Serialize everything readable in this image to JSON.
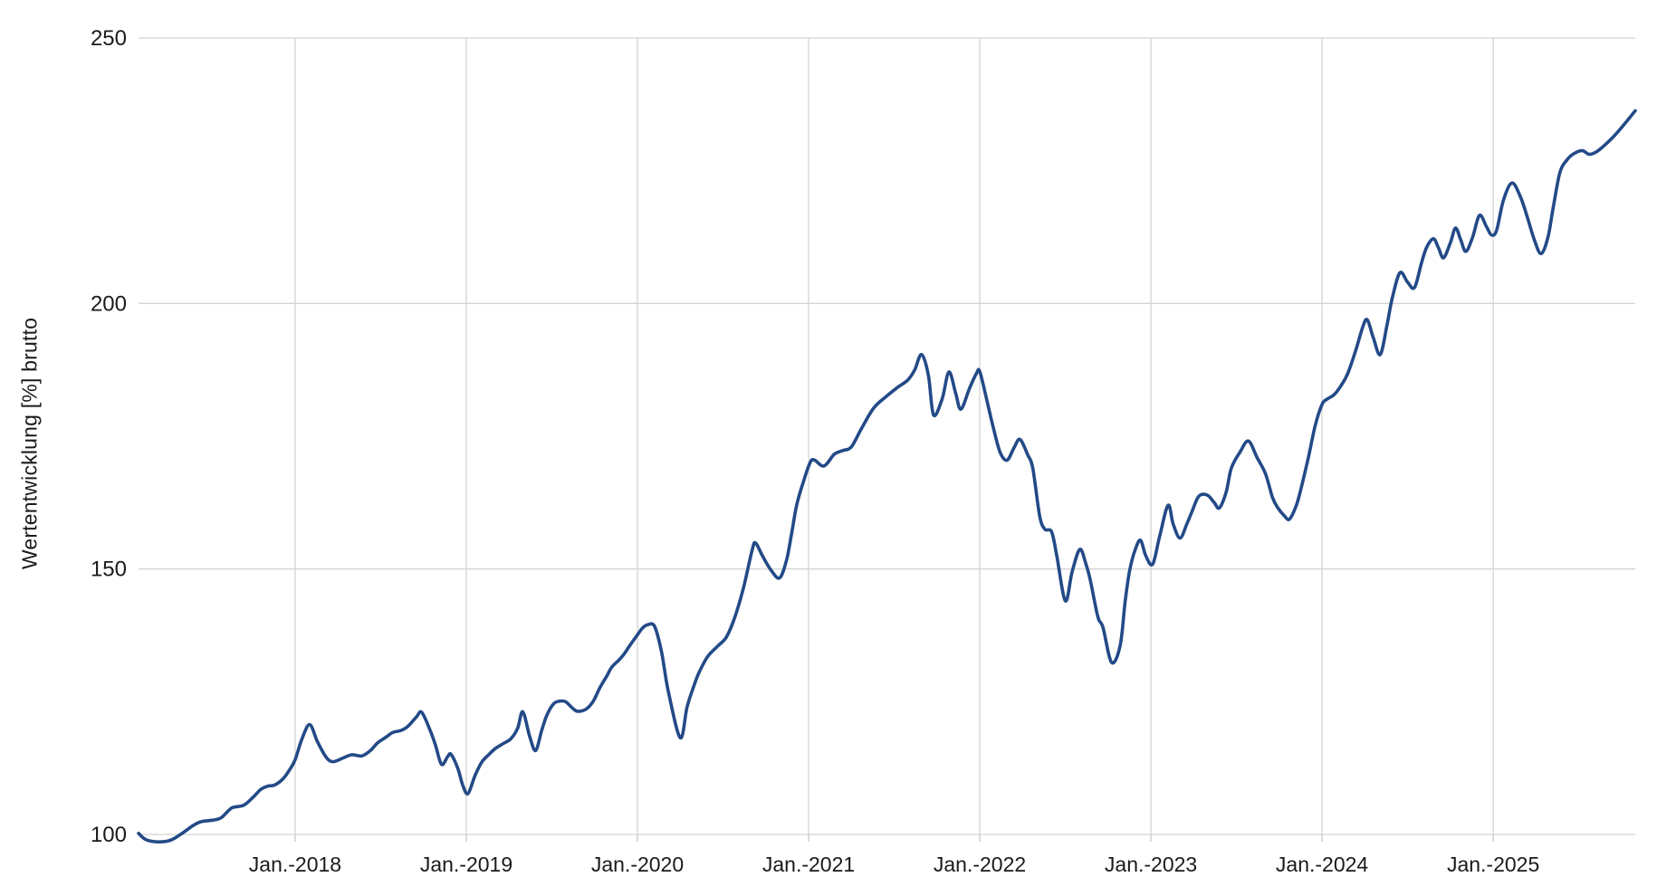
{
  "page": {
    "background": "#ffffff"
  },
  "chart_data": {
    "type": "line",
    "title": "",
    "xlabel": "",
    "ylabel": "Wertentwicklung [%] brutto",
    "legend_position": "none",
    "grid": true,
    "line_color": "#234a87",
    "grid_color": "#d4d4d4",
    "tick_color": "#c8c8c8",
    "text_color": "#1a1a1a",
    "ylim": [
      100,
      250
    ],
    "y_ticks": [
      100,
      150,
      200,
      250
    ],
    "x_ticks": [
      {
        "year": 2018,
        "label": "Jan.-2018"
      },
      {
        "year": 2019,
        "label": "Jan.-2019"
      },
      {
        "year": 2020,
        "label": "Jan.-2020"
      },
      {
        "year": 2021,
        "label": "Jan.-2021"
      },
      {
        "year": 2022,
        "label": "Jan.-2022"
      },
      {
        "year": 2023,
        "label": "Jan.-2023"
      },
      {
        "year": 2024,
        "label": "Jan.-2024"
      },
      {
        "year": 2025,
        "label": "Jan.-2025"
      }
    ],
    "x_range_decimal_years": [
      2017.085,
      2025.83
    ],
    "series": [
      {
        "name": "Wertentwicklung [%] brutto",
        "points": [
          [
            2017.085,
            100.2
          ],
          [
            2017.13,
            99.0
          ],
          [
            2017.2,
            98.6
          ],
          [
            2017.27,
            98.9
          ],
          [
            2017.33,
            100.0
          ],
          [
            2017.4,
            101.6
          ],
          [
            2017.45,
            102.4
          ],
          [
            2017.52,
            102.7
          ],
          [
            2017.57,
            103.2
          ],
          [
            2017.63,
            105.0
          ],
          [
            2017.7,
            105.5
          ],
          [
            2017.76,
            107.2
          ],
          [
            2017.8,
            108.5
          ],
          [
            2017.84,
            109.1
          ],
          [
            2017.88,
            109.3
          ],
          [
            2017.93,
            110.5
          ],
          [
            2017.97,
            112.3
          ],
          [
            2018.0,
            114.1
          ],
          [
            2018.04,
            118.0
          ],
          [
            2018.085,
            120.7
          ],
          [
            2018.13,
            117.5
          ],
          [
            2018.18,
            114.6
          ],
          [
            2018.22,
            113.7
          ],
          [
            2018.28,
            114.4
          ],
          [
            2018.33,
            115.0
          ],
          [
            2018.39,
            114.8
          ],
          [
            2018.44,
            115.8
          ],
          [
            2018.48,
            117.2
          ],
          [
            2018.53,
            118.3
          ],
          [
            2018.57,
            119.2
          ],
          [
            2018.62,
            119.6
          ],
          [
            2018.66,
            120.4
          ],
          [
            2018.71,
            122.2
          ],
          [
            2018.74,
            123.0
          ],
          [
            2018.79,
            119.5
          ],
          [
            2018.82,
            116.8
          ],
          [
            2018.855,
            113.2
          ],
          [
            2018.89,
            114.6
          ],
          [
            2018.91,
            115.1
          ],
          [
            2018.95,
            112.5
          ],
          [
            2018.98,
            109.2
          ],
          [
            2019.01,
            107.7
          ],
          [
            2019.05,
            111.0
          ],
          [
            2019.09,
            113.6
          ],
          [
            2019.13,
            115.0
          ],
          [
            2019.17,
            116.2
          ],
          [
            2019.22,
            117.2
          ],
          [
            2019.26,
            118.0
          ],
          [
            2019.3,
            120.0
          ],
          [
            2019.33,
            123.1
          ],
          [
            2019.37,
            118.5
          ],
          [
            2019.405,
            115.8
          ],
          [
            2019.44,
            119.5
          ],
          [
            2019.47,
            122.4
          ],
          [
            2019.51,
            124.6
          ],
          [
            2019.545,
            125.1
          ],
          [
            2019.58,
            125.0
          ],
          [
            2019.62,
            123.8
          ],
          [
            2019.65,
            123.2
          ],
          [
            2019.7,
            123.6
          ],
          [
            2019.74,
            125.0
          ],
          [
            2019.78,
            127.6
          ],
          [
            2019.82,
            129.8
          ],
          [
            2019.85,
            131.5
          ],
          [
            2019.89,
            132.8
          ],
          [
            2019.92,
            133.9
          ],
          [
            2019.96,
            135.8
          ],
          [
            2020.0,
            137.6
          ],
          [
            2020.03,
            138.9
          ],
          [
            2020.06,
            139.5
          ],
          [
            2020.1,
            139.2
          ],
          [
            2020.14,
            134.5
          ],
          [
            2020.18,
            127.0
          ],
          [
            2020.25,
            118.2
          ],
          [
            2020.29,
            124.0
          ],
          [
            2020.33,
            128.0
          ],
          [
            2020.36,
            130.5
          ],
          [
            2020.41,
            133.5
          ],
          [
            2020.47,
            135.5
          ],
          [
            2020.52,
            137.2
          ],
          [
            2020.57,
            141.0
          ],
          [
            2020.62,
            146.5
          ],
          [
            2020.67,
            153.5
          ],
          [
            2020.69,
            154.9
          ],
          [
            2020.73,
            152.5
          ],
          [
            2020.78,
            149.8
          ],
          [
            2020.83,
            148.3
          ],
          [
            2020.87,
            151.5
          ],
          [
            2020.9,
            156.5
          ],
          [
            2020.93,
            162.0
          ],
          [
            2020.97,
            166.5
          ],
          [
            2021.01,
            170.1
          ],
          [
            2021.035,
            170.5
          ],
          [
            2021.09,
            169.4
          ],
          [
            2021.15,
            171.6
          ],
          [
            2021.2,
            172.3
          ],
          [
            2021.25,
            173.0
          ],
          [
            2021.31,
            176.5
          ],
          [
            2021.38,
            180.3
          ],
          [
            2021.45,
            182.4
          ],
          [
            2021.52,
            184.2
          ],
          [
            2021.58,
            185.6
          ],
          [
            2021.62,
            187.5
          ],
          [
            2021.66,
            190.4
          ],
          [
            2021.7,
            186.5
          ],
          [
            2021.73,
            179.0
          ],
          [
            2021.78,
            182.0
          ],
          [
            2021.82,
            187.1
          ],
          [
            2021.86,
            183.0
          ],
          [
            2021.89,
            180.1
          ],
          [
            2021.94,
            184.0
          ],
          [
            2021.98,
            186.8
          ],
          [
            2022.0,
            187.2
          ],
          [
            2022.04,
            182.0
          ],
          [
            2022.08,
            176.5
          ],
          [
            2022.12,
            171.9
          ],
          [
            2022.16,
            170.5
          ],
          [
            2022.2,
            172.8
          ],
          [
            2022.235,
            174.4
          ],
          [
            2022.28,
            171.5
          ],
          [
            2022.31,
            169.0
          ],
          [
            2022.35,
            160.0
          ],
          [
            2022.38,
            157.5
          ],
          [
            2022.42,
            157.0
          ],
          [
            2022.45,
            152.5
          ],
          [
            2022.5,
            144.0
          ],
          [
            2022.54,
            149.5
          ],
          [
            2022.585,
            153.7
          ],
          [
            2022.62,
            151.0
          ],
          [
            2022.645,
            148.0
          ],
          [
            2022.69,
            141.0
          ],
          [
            2022.72,
            139.0
          ],
          [
            2022.77,
            132.4
          ],
          [
            2022.82,
            135.5
          ],
          [
            2022.85,
            144.0
          ],
          [
            2022.876,
            149.7
          ],
          [
            2022.91,
            153.8
          ],
          [
            2022.94,
            155.4
          ],
          [
            2022.97,
            152.5
          ],
          [
            2023.01,
            150.9
          ],
          [
            2023.05,
            156.0
          ],
          [
            2023.1,
            162.0
          ],
          [
            2023.13,
            158.5
          ],
          [
            2023.17,
            155.8
          ],
          [
            2023.21,
            158.5
          ],
          [
            2023.24,
            160.8
          ],
          [
            2023.28,
            163.7
          ],
          [
            2023.33,
            163.9
          ],
          [
            2023.37,
            162.5
          ],
          [
            2023.4,
            161.5
          ],
          [
            2023.44,
            164.5
          ],
          [
            2023.47,
            169.0
          ],
          [
            2023.52,
            172.0
          ],
          [
            2023.57,
            174.1
          ],
          [
            2023.62,
            171.0
          ],
          [
            2023.67,
            167.9
          ],
          [
            2023.71,
            163.5
          ],
          [
            2023.74,
            161.6
          ],
          [
            2023.78,
            160.0
          ],
          [
            2023.81,
            159.4
          ],
          [
            2023.85,
            162.0
          ],
          [
            2023.88,
            165.5
          ],
          [
            2023.92,
            171.0
          ],
          [
            2023.96,
            177.0
          ],
          [
            2024.0,
            181.0
          ],
          [
            2024.03,
            182.0
          ],
          [
            2024.07,
            182.8
          ],
          [
            2024.11,
            184.5
          ],
          [
            2024.15,
            186.8
          ],
          [
            2024.2,
            191.5
          ],
          [
            2024.24,
            195.8
          ],
          [
            2024.265,
            196.9
          ],
          [
            2024.3,
            193.5
          ],
          [
            2024.34,
            190.4
          ],
          [
            2024.38,
            196.0
          ],
          [
            2024.41,
            201.0
          ],
          [
            2024.455,
            205.8
          ],
          [
            2024.5,
            204.0
          ],
          [
            2024.54,
            203.0
          ],
          [
            2024.58,
            207.5
          ],
          [
            2024.61,
            210.5
          ],
          [
            2024.65,
            212.2
          ],
          [
            2024.68,
            210.5
          ],
          [
            2024.71,
            208.6
          ],
          [
            2024.75,
            211.5
          ],
          [
            2024.78,
            214.2
          ],
          [
            2024.81,
            212.0
          ],
          [
            2024.84,
            209.8
          ],
          [
            2024.88,
            212.5
          ],
          [
            2024.92,
            216.6
          ],
          [
            2024.96,
            214.5
          ],
          [
            2024.99,
            212.9
          ],
          [
            2025.02,
            213.8
          ],
          [
            2025.06,
            219.5
          ],
          [
            2025.11,
            222.7
          ],
          [
            2025.16,
            220.0
          ],
          [
            2025.2,
            216.2
          ],
          [
            2025.24,
            212.0
          ],
          [
            2025.28,
            209.4
          ],
          [
            2025.32,
            212.5
          ],
          [
            2025.35,
            218.0
          ],
          [
            2025.39,
            224.7
          ],
          [
            2025.43,
            227.0
          ],
          [
            2025.47,
            228.2
          ],
          [
            2025.52,
            228.8
          ],
          [
            2025.56,
            228.1
          ],
          [
            2025.6,
            228.5
          ],
          [
            2025.64,
            229.5
          ],
          [
            2025.69,
            231.0
          ],
          [
            2025.73,
            232.4
          ],
          [
            2025.78,
            234.3
          ],
          [
            2025.83,
            236.3
          ]
        ]
      }
    ]
  }
}
